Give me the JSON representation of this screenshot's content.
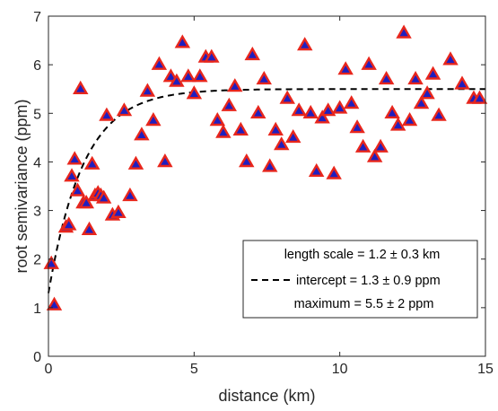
{
  "chart_data": {
    "type": "scatter",
    "xlabel": "distance (km)",
    "ylabel": "root semivariance (ppm)",
    "xlim": [
      0,
      15
    ],
    "ylim": [
      0,
      7
    ],
    "xticks": [
      0,
      5,
      10,
      15
    ],
    "yticks": [
      0,
      1,
      2,
      3,
      4,
      5,
      6,
      7
    ],
    "grid": false,
    "legend_position": "bottom-right",
    "legend": [
      {
        "label": "length scale = 1.2 ± 0.3 km",
        "style": "none"
      },
      {
        "label": "intercept = 1.3 ± 0.9 ppm",
        "style": "dashed"
      },
      {
        "label": "maximum = 5.5 ± 2 ppm",
        "style": "none"
      }
    ],
    "fit": {
      "model": "exponential",
      "length_scale": 1.2,
      "intercept": 1.3,
      "maximum": 5.5,
      "color": "#000000"
    },
    "marker": {
      "shape": "triangle-up",
      "face_color": "#1f1fbf",
      "edge_color": "#e8261c"
    },
    "series": [
      {
        "x": [
          0.1,
          0.2,
          0.6,
          0.7,
          0.8,
          0.9,
          1.0,
          1.1,
          1.2,
          1.3,
          1.4,
          1.5,
          1.6,
          1.7,
          1.8,
          1.9,
          2.0,
          2.2,
          2.4,
          2.6,
          2.8,
          3.0,
          3.2,
          3.4,
          3.6,
          3.8,
          4.0,
          4.2,
          4.4,
          4.6,
          4.8,
          5.0,
          5.2,
          5.4,
          5.6,
          5.8,
          6.0,
          6.2,
          6.4,
          6.6,
          6.8,
          7.0,
          7.2,
          7.4,
          7.6,
          7.8,
          8.0,
          8.2,
          8.4,
          8.6,
          8.8,
          9.0,
          9.2,
          9.4,
          9.6,
          9.8,
          10.0,
          10.2,
          10.4,
          10.6,
          10.8,
          11.0,
          11.2,
          11.4,
          11.6,
          11.8,
          12.0,
          12.2,
          12.4,
          12.6,
          12.8,
          13.0,
          13.2,
          13.4,
          13.8,
          14.2,
          14.6,
          14.8
        ],
        "y": [
          1.9,
          1.05,
          2.65,
          2.7,
          3.7,
          4.05,
          3.4,
          5.5,
          3.15,
          3.15,
          2.6,
          3.95,
          3.3,
          3.35,
          3.3,
          3.25,
          4.95,
          2.9,
          2.95,
          5.05,
          3.3,
          3.95,
          4.55,
          5.45,
          4.85,
          6.0,
          4.0,
          5.75,
          5.65,
          6.45,
          5.75,
          5.4,
          5.75,
          6.15,
          6.15,
          4.85,
          4.6,
          5.15,
          5.55,
          4.65,
          4.0,
          6.2,
          5.0,
          5.7,
          3.9,
          4.65,
          4.35,
          5.3,
          4.5,
          5.05,
          6.4,
          5.0,
          3.8,
          4.9,
          5.05,
          3.75,
          5.1,
          5.9,
          5.2,
          4.7,
          4.3,
          6.0,
          4.1,
          4.3,
          5.7,
          5.0,
          4.75,
          6.65,
          4.85,
          5.7,
          5.2,
          5.4,
          5.8,
          4.95,
          6.1,
          5.6,
          5.3,
          5.3
        ]
      }
    ]
  }
}
